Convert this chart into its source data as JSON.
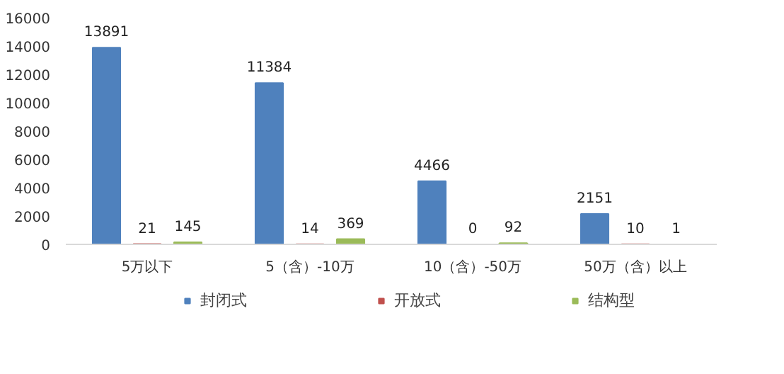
{
  "chart_data": {
    "type": "bar",
    "categories": [
      "5万以下",
      "5（含）-10万",
      "10（含）-50万",
      "50万（含）以上"
    ],
    "series": [
      {
        "name": "封闭式",
        "color": "#4f81bd",
        "values": [
          13891,
          11384,
          4466,
          2151
        ]
      },
      {
        "name": "开放式",
        "color": "#c0504d",
        "values": [
          21,
          14,
          0,
          10
        ]
      },
      {
        "name": "结构型",
        "color": "#9bbb59",
        "values": [
          145,
          369,
          92,
          1
        ]
      }
    ],
    "ylim": [
      0,
      16000
    ],
    "yticks": [
      0,
      2000,
      4000,
      6000,
      8000,
      10000,
      12000,
      14000,
      16000
    ],
    "grid": false,
    "legend": "bottom",
    "data_labels": true
  }
}
